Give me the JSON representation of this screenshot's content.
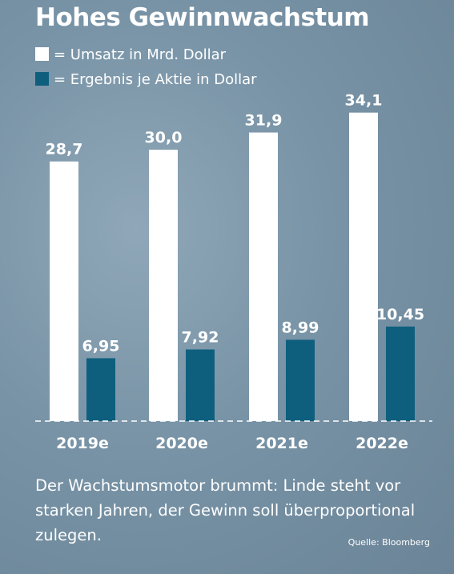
{
  "title": "Hohes Gewinnwachstum",
  "legend": [
    {
      "label": "= Umsatz in Mrd. Dollar",
      "color": "#ffffff"
    },
    {
      "label": "= Ergebnis je Aktie in Dollar",
      "color": "#0e5f7e"
    }
  ],
  "chart_data": {
    "type": "bar",
    "categories": [
      "2019e",
      "2020e",
      "2021e",
      "2022e"
    ],
    "series": [
      {
        "name": "Umsatz in Mrd. Dollar",
        "values": [
          28.7,
          30.0,
          31.9,
          34.1
        ],
        "labels": [
          "28,7",
          "30,0",
          "31,9",
          "34,1"
        ],
        "color": "#ffffff"
      },
      {
        "name": "Ergebnis je Aktie in Dollar",
        "values": [
          6.95,
          7.92,
          8.99,
          10.45
        ],
        "labels": [
          "6,95",
          "7,92",
          "8,99",
          "10,45"
        ],
        "color": "#0e5f7e"
      }
    ],
    "baseline": "dashed white"
  },
  "caption": "Der Wachstumsmotor brummt: Linde steht vor starken Jahren, der Gewinn soll überproportional zulegen.",
  "source": "Quelle: Bloomberg"
}
